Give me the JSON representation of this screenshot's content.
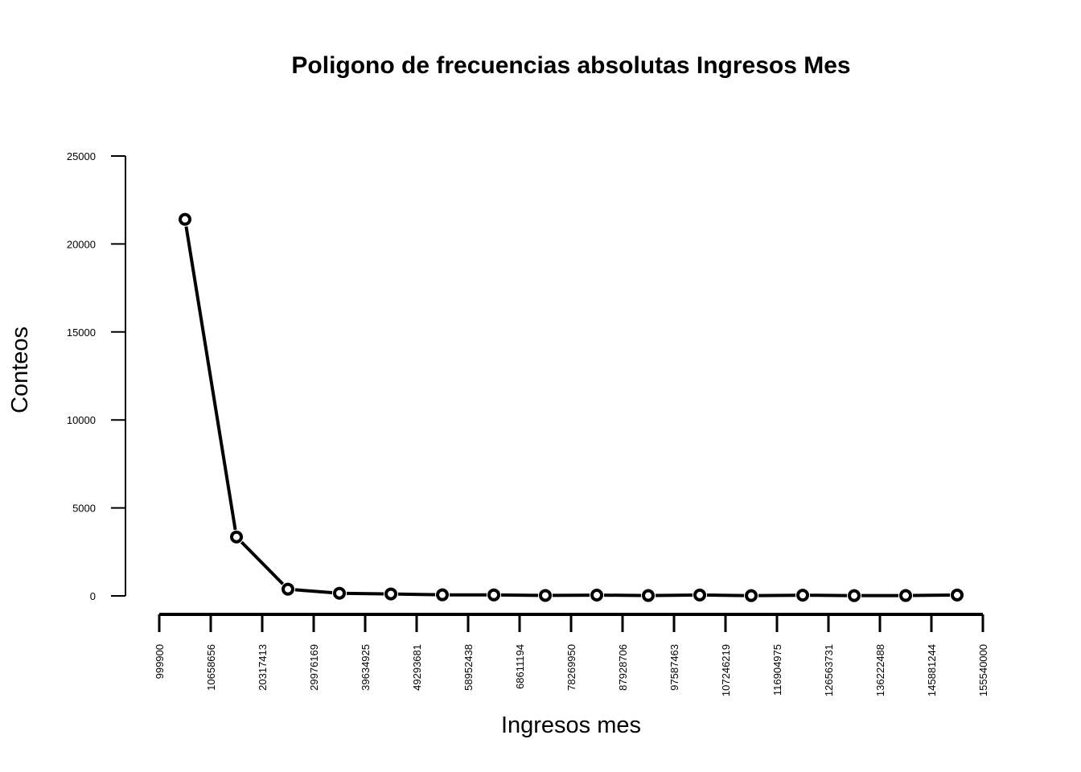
{
  "chart_data": {
    "type": "line",
    "title": "Poligono de frecuencias absolutas Ingresos Mes",
    "xlabel": "Ingresos mes",
    "ylabel": "Conteos",
    "x_tick_labels": [
      "999900",
      "10658656",
      "20317413",
      "29976169",
      "39634925",
      "49293681",
      "58952438",
      "68611194",
      "78269950",
      "87928706",
      "97587463",
      "107246219",
      "116904975",
      "126563731",
      "136222488",
      "145881244",
      "155540000"
    ],
    "y_ticks": [
      0,
      5000,
      10000,
      15000,
      20000,
      25000
    ],
    "y_tick_labels": [
      "0",
      "5000",
      "10000",
      "15000",
      "20000",
      "25000"
    ],
    "ylim": [
      0,
      25000
    ],
    "series": [
      {
        "x": [
          5829278,
          15488034,
          25146791,
          34805547,
          44464303,
          54123059,
          63781816,
          73440572,
          83099328,
          92758084,
          102416841,
          112075597,
          121734353,
          131393109,
          141051866,
          150710622
        ],
        "values": [
          21400,
          3350,
          380,
          150,
          110,
          60,
          55,
          25,
          45,
          20,
          50,
          15,
          40,
          15,
          20,
          50
        ]
      }
    ],
    "grid": false,
    "legend": "none"
  }
}
